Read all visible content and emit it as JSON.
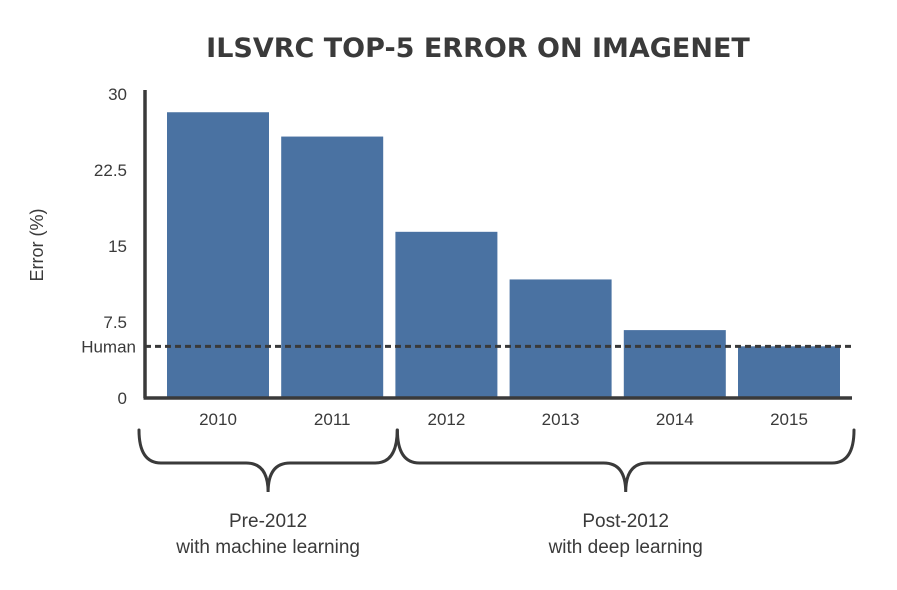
{
  "chart_data": {
    "type": "bar",
    "title": "ILSVRC TOP-5 ERROR ON IMAGENET",
    "ylabel": "Error (%)",
    "xlabel": "",
    "categories": [
      "2010",
      "2011",
      "2012",
      "2013",
      "2014",
      "2015"
    ],
    "values": [
      28.2,
      25.8,
      16.4,
      11.7,
      6.7,
      5.1
    ],
    "ylim": [
      0,
      30
    ],
    "yticks": [
      "0",
      "7.5",
      "15",
      "22.5",
      "30"
    ],
    "ytick_values": [
      0,
      7.5,
      15,
      22.5,
      30
    ],
    "reference_line": {
      "label": "Human",
      "value": 5.1
    },
    "groups": [
      {
        "line1": "Pre-2012",
        "line2": "with machine learning",
        "categories": [
          "2010",
          "2011"
        ]
      },
      {
        "line1": "Post-2012",
        "line2": "with deep learning",
        "categories": [
          "2012",
          "2013",
          "2014",
          "2015"
        ]
      }
    ],
    "grid": false,
    "colors": {
      "bar": "#4a72a2",
      "axis": "#3a3a3a"
    }
  }
}
